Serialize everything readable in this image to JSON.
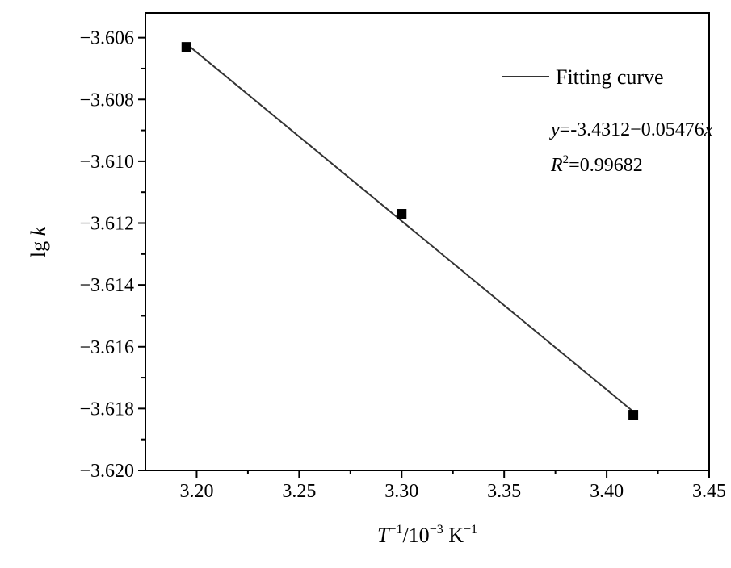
{
  "chart_data": {
    "type": "scatter",
    "x_ticks": [
      "3.20",
      "3.25",
      "3.30",
      "3.35",
      "3.40",
      "3.45"
    ],
    "y_ticks": [
      "-3.606",
      "-3.608",
      "-3.610",
      "-3.612",
      "-3.614",
      "-3.616",
      "-3.618",
      "-3.620"
    ],
    "xlim": [
      3.175,
      3.45
    ],
    "ylim": [
      -3.62,
      -3.6052
    ],
    "x_tick_values": [
      3.2,
      3.25,
      3.3,
      3.35,
      3.4,
      3.45
    ],
    "y_tick_values": [
      -3.606,
      -3.608,
      -3.61,
      -3.612,
      -3.614,
      -3.616,
      -3.618,
      -3.62
    ],
    "xlabel": {
      "main": "T",
      "sup1": "−1",
      "mid": "/10",
      "sup2": "−3",
      "unit": " K",
      "sup3": "−1"
    },
    "ylabel": {
      "main": "lg ",
      "var": "k"
    },
    "series": [
      {
        "name": "",
        "x": [
          3.195,
          3.3,
          3.413
        ],
        "y": [
          -3.6063,
          -3.6117,
          -3.6182
        ],
        "marker": "square",
        "color": "#000000"
      }
    ],
    "fit_line": {
      "name": "Fitting curve",
      "x": [
        3.195,
        3.413
      ],
      "y": [
        -3.6062,
        -3.6181
      ],
      "color": "#333333"
    },
    "annotation": {
      "eq_var": "y",
      "eq_rest": "=-3.4312−0.05476",
      "eq_x": "x",
      "r2_var": "R",
      "r2_sup": "2",
      "r2_rest": "=0.99682"
    },
    "legend_position": "top-right",
    "grid": false
  }
}
